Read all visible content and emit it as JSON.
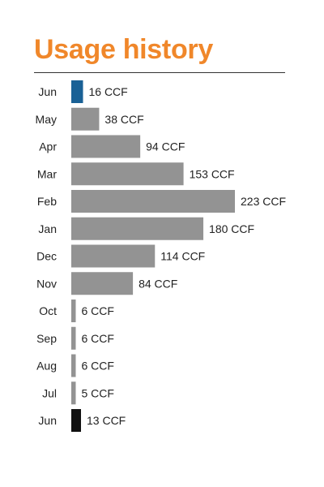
{
  "header": {
    "title": "Usage history"
  },
  "colors": {
    "title": "#f0872a",
    "bar_default": "#939393",
    "bar_current": "#1a6196",
    "bar_year_ago": "#111111",
    "rule": "#333333",
    "text": "#222222"
  },
  "chart_data": {
    "type": "bar",
    "orientation": "horizontal",
    "title": "Usage history",
    "unit": "CCF",
    "categories": [
      "Jun",
      "May",
      "Apr",
      "Mar",
      "Feb",
      "Jan",
      "Dec",
      "Nov",
      "Oct",
      "Sep",
      "Aug",
      "Jul",
      "Jun"
    ],
    "values": [
      16,
      38,
      94,
      153,
      223,
      180,
      114,
      84,
      6,
      6,
      6,
      5,
      13
    ],
    "data_labels": [
      "16 CCF",
      "38 CCF",
      "94 CCF",
      "153 CCF",
      "223 CCF",
      "180 CCF",
      "114 CCF",
      "84 CCF",
      "6 CCF",
      "6 CCF",
      "6 CCF",
      "5 CCF",
      "13 CCF"
    ],
    "bar_colors": [
      "#1a6196",
      "#939393",
      "#939393",
      "#939393",
      "#939393",
      "#939393",
      "#939393",
      "#939393",
      "#939393",
      "#939393",
      "#939393",
      "#939393",
      "#111111"
    ],
    "xlim": [
      0,
      223
    ],
    "grid": false,
    "legend": "none"
  }
}
